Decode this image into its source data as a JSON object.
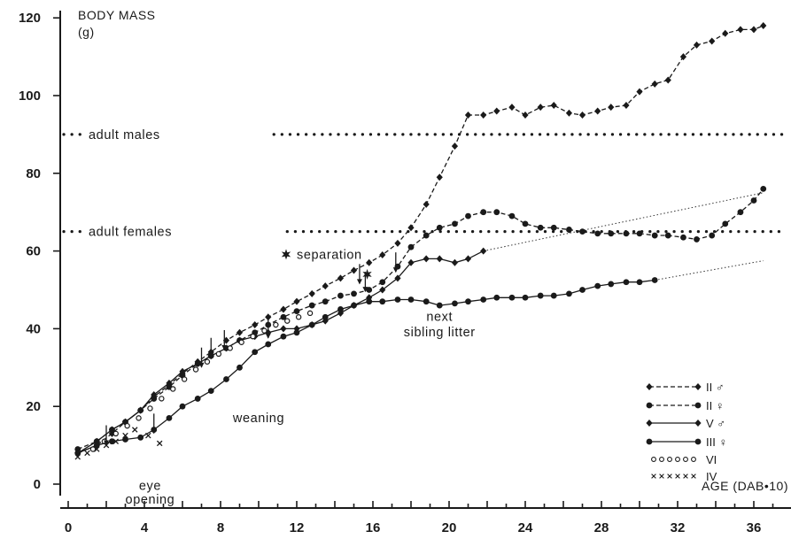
{
  "chart_data": {
    "type": "line",
    "ylabel_line1": "BODY MASS",
    "ylabel_line2": "(g)",
    "xlabel": "AGE (DAB•10)",
    "xlim": [
      0,
      37
    ],
    "ylim": [
      0,
      122
    ],
    "x_ticks": [
      0,
      4,
      8,
      12,
      16,
      20,
      24,
      28,
      32,
      36
    ],
    "y_ticks": [
      0,
      20,
      40,
      60,
      80,
      100,
      120
    ],
    "reference_lines": [
      {
        "label": "adult males",
        "y": 90
      },
      {
        "label": "adult females",
        "y": 65
      }
    ],
    "annotations": [
      {
        "text": "eye",
        "x": 4.3,
        "y": -1.5
      },
      {
        "text": "opening",
        "x": 4.3,
        "y": -5
      },
      {
        "text": "weaning",
        "x": 10,
        "y": 16
      },
      {
        "text": "separation",
        "x": 12,
        "y": 58
      },
      {
        "text": "next",
        "x": 19.5,
        "y": 42
      },
      {
        "text": "sibling litter",
        "x": 19.5,
        "y": 38
      }
    ],
    "series": [
      {
        "name": "II ♂",
        "marker": "diamond",
        "line": "dashed",
        "color": "#1a1a1a",
        "x": [
          0.5,
          1.5,
          2.3,
          3,
          3.8,
          4.5,
          5.3,
          6,
          6.8,
          7.5,
          8.3,
          9,
          9.8,
          10.5,
          11.3,
          12,
          12.8,
          13.5,
          14.3,
          15,
          15.8,
          16.5,
          17.3,
          18,
          18.8,
          19.5,
          20.3,
          21,
          21.8,
          22.5,
          23.3,
          24,
          24.8,
          25.5,
          26.3,
          27,
          27.8,
          28.5,
          29.3,
          30,
          30.8,
          31.5,
          32.3,
          33,
          33.8,
          34.5,
          35.3,
          36,
          36.5
        ],
        "y": [
          8,
          10,
          13,
          16,
          19,
          22.5,
          25.5,
          28.5,
          31.5,
          34,
          37,
          39,
          41,
          43,
          45,
          47,
          49,
          51,
          53,
          55,
          57,
          59,
          62,
          66,
          72,
          79,
          87,
          95,
          95,
          96,
          97,
          95,
          97,
          97.5,
          95.5,
          95,
          96,
          97,
          97.5,
          101,
          103,
          104,
          110,
          113,
          114,
          116,
          117,
          117,
          118
        ]
      },
      {
        "name": "II ♀",
        "marker": "circle",
        "line": "dashed",
        "color": "#1a1a1a",
        "x": [
          0.5,
          1.5,
          2.3,
          3,
          3.8,
          4.5,
          5.3,
          6,
          6.8,
          7.5,
          8.3,
          9,
          9.8,
          10.5,
          11.3,
          12,
          12.8,
          13.5,
          14.3,
          15,
          15.8,
          16.5,
          17.3,
          18,
          18.8,
          19.5,
          20.3,
          21,
          21.8,
          22.5,
          23.3,
          24,
          24.8,
          25.5,
          26.3,
          27,
          27.8,
          28.5,
          29.3,
          30,
          30.8,
          31.5,
          32.3,
          33,
          33.8,
          34.5,
          35.3,
          36,
          36.5
        ],
        "y": [
          9,
          11,
          14,
          16,
          19,
          22,
          25,
          28,
          31,
          33,
          35,
          37,
          39,
          41,
          43,
          44.5,
          46,
          47,
          48.5,
          49,
          50,
          52,
          56,
          61,
          64,
          66,
          67,
          69,
          70,
          70,
          69,
          67,
          66,
          66,
          65.5,
          65,
          64.5,
          64.5,
          64.5,
          64.5,
          64,
          64,
          63.5,
          63,
          64,
          67,
          70,
          73,
          76
        ]
      },
      {
        "name": "V ♂",
        "marker": "diamond",
        "line": "solid",
        "color": "#1a1a1a",
        "x": [
          0.5,
          1.5,
          2.3,
          3,
          3.8,
          4.5,
          5.3,
          6,
          6.8,
          7.5,
          8.3,
          9,
          9.8,
          10.5,
          11.3,
          12,
          12.8,
          13.5,
          14.3,
          15,
          15.8,
          16.5,
          17.3,
          18,
          18.8,
          19.5,
          20.3,
          21,
          21.8
        ],
        "y": [
          8,
          11,
          14,
          16,
          19,
          23,
          26,
          29,
          31,
          33,
          35,
          37,
          38,
          39,
          40,
          40,
          41,
          42,
          44,
          46,
          48,
          50,
          53,
          57,
          58,
          58,
          57,
          58,
          60
        ]
      },
      {
        "name": "III ♀",
        "marker": "circle",
        "line": "solid",
        "color": "#1a1a1a",
        "x": [
          0.5,
          1.5,
          2.3,
          3,
          3.8,
          4.5,
          5.3,
          6,
          6.8,
          7.5,
          8.3,
          9,
          9.8,
          10.5,
          11.3,
          12,
          12.8,
          13.5,
          14.3,
          15,
          15.8,
          16.5,
          17.3,
          18,
          18.8,
          19.5,
          20.3,
          21,
          21.8,
          22.5,
          23.3,
          24,
          24.8,
          25.5,
          26.3,
          27,
          27.8,
          28.5,
          29.3,
          30,
          30.8
        ],
        "y": [
          8,
          10,
          11,
          11.5,
          12,
          14,
          17,
          20,
          22,
          24,
          27,
          30,
          34,
          36,
          38,
          39,
          41,
          43,
          45,
          46,
          47,
          47,
          47.5,
          47.5,
          47,
          46,
          46.5,
          47,
          47.5,
          48,
          48,
          48,
          48.5,
          48.5,
          49,
          50,
          51,
          51.5,
          52,
          52,
          52.5
        ]
      },
      {
        "name": "VI",
        "marker": "open-circle",
        "line": "none",
        "color": "#1a1a1a",
        "x": [
          1.3,
          1.9,
          2.5,
          3.1,
          3.7,
          4.3,
          4.9,
          5.5,
          6.1,
          6.7,
          7.3,
          7.9,
          8.5,
          9.1,
          9.7,
          10.3,
          10.9,
          11.5,
          12.1,
          12.7
        ],
        "y": [
          9,
          11,
          13,
          15,
          17,
          19.5,
          22,
          24.5,
          27,
          29.5,
          31.5,
          33.5,
          35,
          36.5,
          38,
          39.5,
          41,
          42,
          43,
          44
        ]
      },
      {
        "name": "IV",
        "marker": "x",
        "line": "none",
        "color": "#1a1a1a",
        "x": [
          0.5,
          1,
          1.5,
          2,
          2.5,
          3,
          3.5,
          4.2,
          4.8
        ],
        "y": [
          7,
          8,
          9,
          10,
          11,
          12.5,
          14,
          12.5,
          10.5
        ]
      }
    ],
    "projections": [
      {
        "from": [
          21.8,
          60
        ],
        "to": [
          36.5,
          75
        ]
      },
      {
        "from": [
          30.8,
          52.5
        ],
        "to": [
          36.5,
          57.5
        ]
      }
    ],
    "event_arrows": [
      {
        "x": 2,
        "y": 11.5
      },
      {
        "x": 4.5,
        "y": 14.5
      },
      {
        "x": 7,
        "y": 31.5
      },
      {
        "x": 7.5,
        "y": 34
      },
      {
        "x": 8.2,
        "y": 36
      },
      {
        "x": 10.5,
        "y": 39
      },
      {
        "x": 15.3,
        "y": 53
      },
      {
        "x": 15.6,
        "y": 51
      },
      {
        "x": 17.2,
        "y": 56
      }
    ],
    "event_stars": [
      {
        "x": 15.7,
        "y": 54
      }
    ],
    "legend_position": "right-middle"
  }
}
